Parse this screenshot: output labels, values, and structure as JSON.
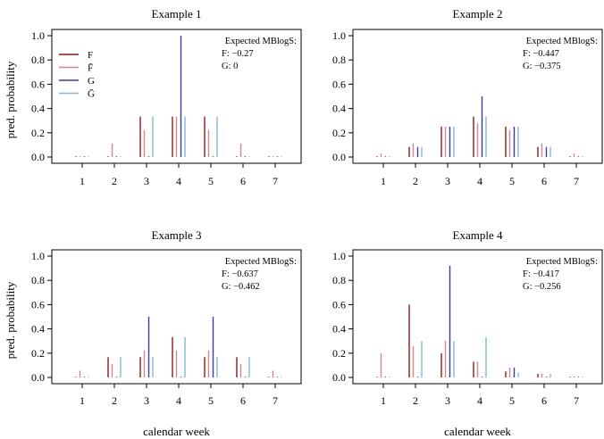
{
  "ylabel": "pred. probability",
  "xlabel": "calendar week",
  "colors": {
    "F": "#8b1a1a",
    "F_bar": "#d4868e",
    "G": "#3b3b99",
    "G_bar": "#7fb9d4"
  },
  "legend": [
    {
      "key": "F",
      "label": "F"
    },
    {
      "key": "F_bar",
      "label": "F̄"
    },
    {
      "key": "G",
      "label": "G"
    },
    {
      "key": "G_bar",
      "label": "Ḡ"
    }
  ],
  "chart_data": [
    {
      "type": "bar",
      "title": "Example 1",
      "categories": [
        "1",
        "2",
        "3",
        "4",
        "5",
        "6",
        "7"
      ],
      "ylim": [
        0,
        1
      ],
      "yticks": [
        "0.0",
        "0.2",
        "0.4",
        "0.6",
        "0.8",
        "1.0"
      ],
      "annotation": [
        "Expected MBlogS:",
        "F: −0.27",
        "G: 0"
      ],
      "legend_position": "top-left",
      "series": [
        {
          "name": "F",
          "values": [
            0,
            0,
            0.333,
            0.333,
            0.333,
            0,
            0
          ]
        },
        {
          "name": "F̄",
          "values": [
            0,
            0.111,
            0.222,
            0.333,
            0.222,
            0.111,
            0
          ]
        },
        {
          "name": "G",
          "values": [
            0,
            0,
            0,
            1.0,
            0,
            0,
            0
          ]
        },
        {
          "name": "Ḡ",
          "values": [
            0,
            0,
            0.333,
            0.333,
            0.333,
            0,
            0
          ]
        }
      ]
    },
    {
      "type": "bar",
      "title": "Example 2",
      "categories": [
        "1",
        "2",
        "3",
        "4",
        "5",
        "6",
        "7"
      ],
      "ylim": [
        0,
        1
      ],
      "yticks": [
        "0.0",
        "0.2",
        "0.4",
        "0.6",
        "0.8",
        "1.0"
      ],
      "annotation": [
        "Expected MBlogS:",
        "F: −0.447",
        "G: −0.375"
      ],
      "series": [
        {
          "name": "F",
          "values": [
            0,
            0.083,
            0.25,
            0.333,
            0.25,
            0.083,
            0
          ]
        },
        {
          "name": "F̄",
          "values": [
            0.028,
            0.111,
            0.25,
            0.278,
            0.222,
            0.111,
            0.028
          ]
        },
        {
          "name": "G",
          "values": [
            0,
            0.083,
            0.25,
            0.5,
            0.25,
            0.083,
            0
          ]
        },
        {
          "name": "Ḡ",
          "values": [
            0,
            0.083,
            0.25,
            0.333,
            0.25,
            0.083,
            0
          ]
        }
      ]
    },
    {
      "type": "bar",
      "title": "Example 3",
      "categories": [
        "1",
        "2",
        "3",
        "4",
        "5",
        "6",
        "7"
      ],
      "ylim": [
        0,
        1
      ],
      "yticks": [
        "0.0",
        "0.2",
        "0.4",
        "0.6",
        "0.8",
        "1.0"
      ],
      "annotation": [
        "Expected MBlogS:",
        "F: −0.637",
        "G: −0.462"
      ],
      "series": [
        {
          "name": "F",
          "values": [
            0,
            0.167,
            0.167,
            0.333,
            0.167,
            0.167,
            0
          ]
        },
        {
          "name": "F̄",
          "values": [
            0.056,
            0.111,
            0.222,
            0.222,
            0.222,
            0.111,
            0.056
          ]
        },
        {
          "name": "G",
          "values": [
            0,
            0,
            0.5,
            0,
            0.5,
            0,
            0
          ]
        },
        {
          "name": "Ḡ",
          "values": [
            0,
            0.167,
            0.167,
            0.333,
            0.167,
            0.167,
            0
          ]
        }
      ]
    },
    {
      "type": "bar",
      "title": "Example 4",
      "categories": [
        "1",
        "2",
        "3",
        "4",
        "5",
        "6",
        "7"
      ],
      "ylim": [
        0,
        1
      ],
      "yticks": [
        "0.0",
        "0.2",
        "0.4",
        "0.6",
        "0.8",
        "1.0"
      ],
      "annotation": [
        "Expected MBlogS:",
        "F: −0.417",
        "G: −0.256"
      ],
      "series": [
        {
          "name": "F",
          "values": [
            0,
            0.6,
            0.2,
            0.13,
            0.05,
            0.03,
            0
          ]
        },
        {
          "name": "F̄",
          "values": [
            0.2,
            0.26,
            0.3,
            0.13,
            0.08,
            0.03,
            0.01
          ]
        },
        {
          "name": "G",
          "values": [
            0,
            0,
            0.92,
            0,
            0.08,
            0,
            0
          ]
        },
        {
          "name": "Ḡ",
          "values": [
            0,
            0.3,
            0.3,
            0.33,
            0.04,
            0.03,
            0
          ]
        }
      ]
    }
  ]
}
